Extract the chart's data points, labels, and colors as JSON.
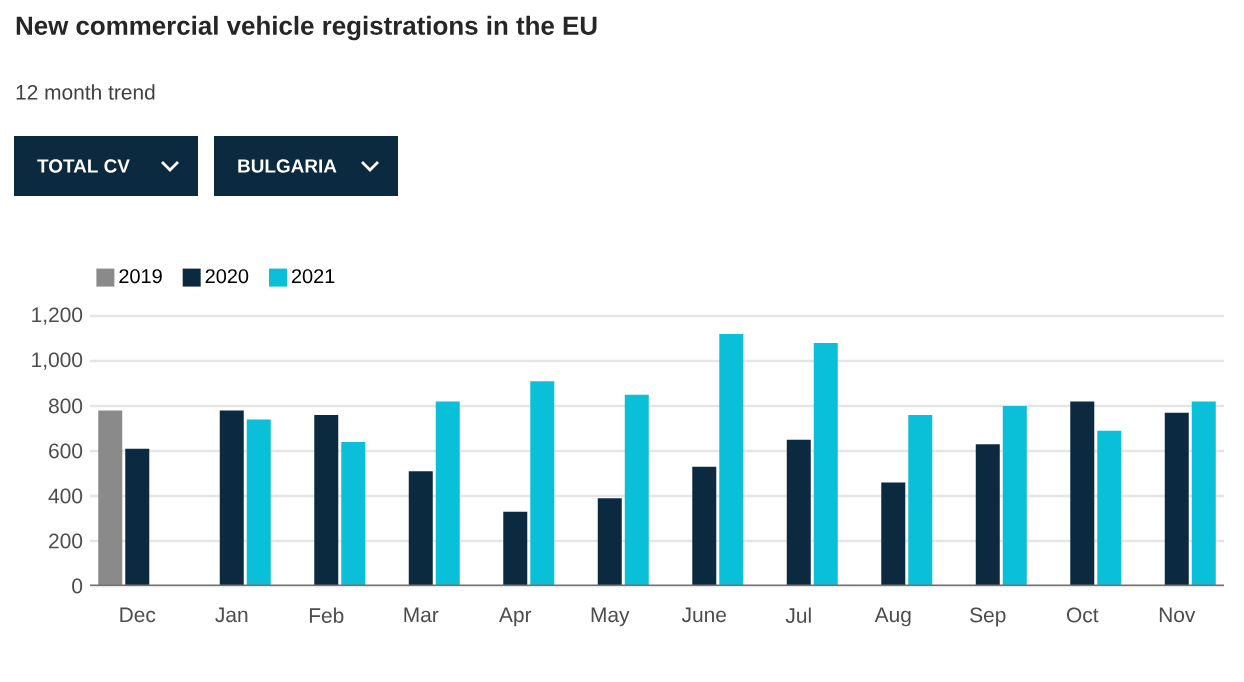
{
  "chart_data": {
    "type": "bar",
    "title": "New commercial vehicle registrations in the EU",
    "subtitle": "12 month trend",
    "annotations": [
      "TOTAL CV",
      "BULGARIA"
    ],
    "categories": [
      "Dec",
      "Jan",
      "Feb",
      "Mar",
      "Apr",
      "May",
      "June",
      "Jul",
      "Aug",
      "Sep",
      "Oct",
      "Nov"
    ],
    "series": [
      {
        "name": "2019",
        "color": "#8a8a8a",
        "values": [
          780,
          null,
          null,
          null,
          null,
          null,
          null,
          null,
          null,
          null,
          null,
          null
        ]
      },
      {
        "name": "2020",
        "color": "#0b2a3f",
        "values": [
          610,
          780,
          760,
          510,
          330,
          390,
          530,
          650,
          460,
          630,
          820,
          770
        ]
      },
      {
        "name": "2021",
        "color": "#0ac0d8",
        "values": [
          null,
          740,
          640,
          820,
          910,
          850,
          1120,
          1080,
          760,
          800,
          690,
          820
        ]
      }
    ],
    "ylim": [
      0,
      1200
    ],
    "yticks": [
      0,
      200,
      400,
      600,
      800,
      {
        "value": 1000,
        "label": "1,000"
      },
      {
        "value": 1200,
        "label": "1,200"
      }
    ],
    "grid": "y",
    "legend": "top left"
  }
}
